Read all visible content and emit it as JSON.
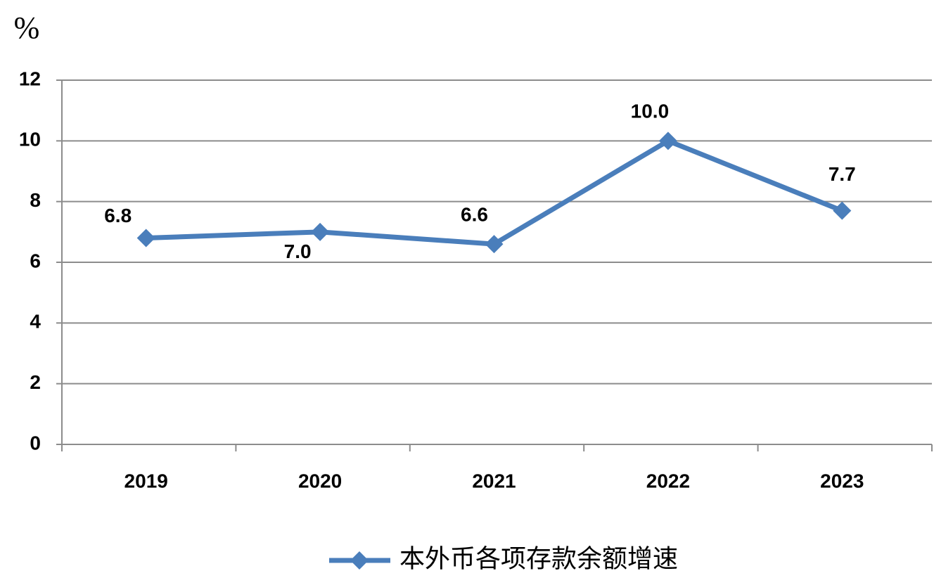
{
  "chart_data": {
    "type": "line",
    "y_label": "%",
    "categories": [
      "2019",
      "2020",
      "2021",
      "2022",
      "2023"
    ],
    "series": [
      {
        "name": "本外币各项存款余额增速",
        "color": "#4a7ebb",
        "values": [
          6.8,
          7.0,
          6.6,
          10.0,
          7.7
        ],
        "value_labels": [
          "6.8",
          "7.0",
          "6.6",
          "10.0",
          "7.7"
        ]
      }
    ],
    "ylim": [
      0,
      12
    ],
    "yticks": [
      0,
      2,
      4,
      6,
      8,
      10,
      12
    ],
    "grid": true,
    "legend": "bottom"
  }
}
